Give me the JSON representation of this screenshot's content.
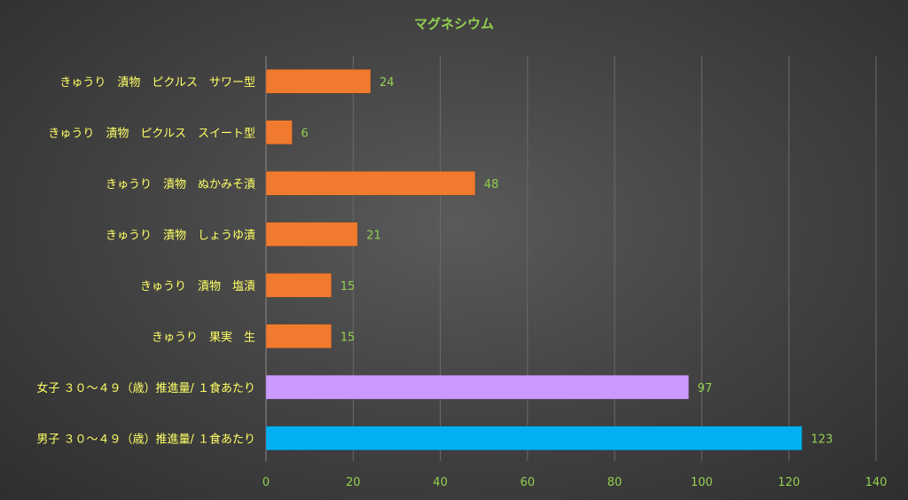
{
  "chart_data": {
    "type": "bar",
    "orientation": "horizontal",
    "title": "マグネシウム",
    "categories": [
      "きゅうり　漬物　ピクルス　サワー型",
      "きゅうり　漬物　ピクルス　スイート型",
      "きゅうり　漬物　ぬかみそ漬",
      "きゅうり　漬物　しょうゆ漬",
      "きゅうり　漬物　塩漬",
      "きゅうり　果実　生",
      "女子 ３０～４９（歳）推進量/ １食あたり",
      "男子 ３０～４９（歳）推進量/ １食あたり"
    ],
    "values": [
      24,
      6,
      48,
      21,
      15,
      15,
      97,
      123
    ],
    "value_labels": [
      "24",
      "6",
      "48",
      "21",
      "15",
      "15",
      "97",
      "123"
    ],
    "bar_colors": [
      "#f07a2e",
      "#f07a2e",
      "#f07a2e",
      "#f07a2e",
      "#f07a2e",
      "#f07a2e",
      "#cc99ff",
      "#00b0f0"
    ],
    "xlim": [
      0,
      140
    ],
    "x_ticks": [
      "0",
      "20",
      "40",
      "60",
      "80",
      "100",
      "120",
      "140"
    ],
    "grid": true,
    "legend": "none",
    "colors": {
      "title": "#92d050",
      "category_labels": "#ffff66",
      "tick_labels": "#92d050",
      "value_labels": "#92d050",
      "gridlines": "#6a6a6a"
    }
  }
}
